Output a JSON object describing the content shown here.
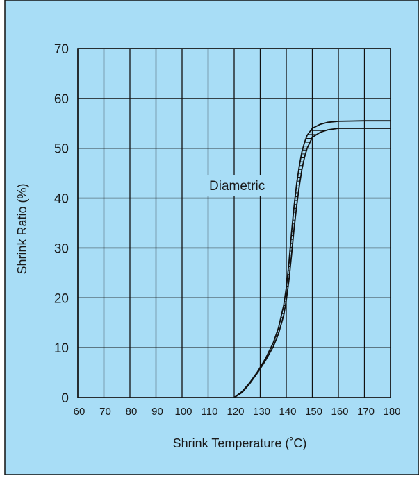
{
  "chart_data": {
    "type": "line",
    "title": "",
    "xlabel": "Shrink Temperature (˚C)",
    "ylabel": "Shrink Ratio (%)",
    "xlim": [
      60,
      180
    ],
    "ylim": [
      0,
      70
    ],
    "x_ticks": [
      "60",
      "70",
      "80",
      "90",
      "100",
      "110",
      "120",
      "130",
      "140",
      "150",
      "160",
      "170",
      "180"
    ],
    "y_ticks": [
      "0",
      "10",
      "20",
      "30",
      "40",
      "50",
      "60",
      "70"
    ],
    "grid": true,
    "annotation": "Diametric",
    "series": [
      {
        "x": [
          120,
          123,
          126,
          129,
          132,
          135,
          137,
          139,
          140,
          141,
          142,
          143,
          144,
          145,
          146,
          147,
          148,
          150,
          153,
          156,
          160,
          170,
          180
        ],
        "y": [
          0,
          1.2,
          3.0,
          5.2,
          7.8,
          11.0,
          14.0,
          18.5,
          22.0,
          27.0,
          33.0,
          38.5,
          43.0,
          46.5,
          49.3,
          51.2,
          52.6,
          54.0,
          54.8,
          55.2,
          55.4,
          55.5,
          55.5
        ]
      },
      {
        "x": [
          120,
          123,
          126,
          129,
          132,
          135,
          137,
          139,
          140,
          141,
          142,
          143,
          144,
          145,
          146,
          147,
          148,
          150,
          153,
          156,
          160,
          170,
          180
        ],
        "y": [
          0,
          1.0,
          2.8,
          5.0,
          7.4,
          10.2,
          12.8,
          16.5,
          19.5,
          23.5,
          28.5,
          34.0,
          38.5,
          42.5,
          45.8,
          48.2,
          50.0,
          52.2,
          53.2,
          53.7,
          54.0,
          54.0,
          54.0
        ]
      }
    ],
    "colors": {
      "background": "#a8ddf6",
      "border": "#111111",
      "grid": "#111111",
      "curve": "#111111",
      "label_bg": "#a8ddf6"
    }
  }
}
